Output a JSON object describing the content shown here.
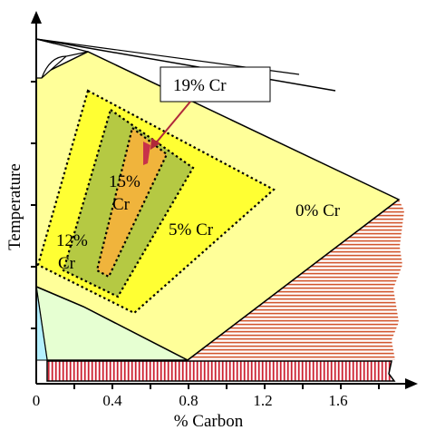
{
  "xlabel": "% Carbon",
  "ylabel": "Temperature",
  "x_ticks": [
    "0",
    "0.4",
    "0.8",
    "1.2",
    "1.6"
  ],
  "region_labels": {
    "cr0": "0% Cr",
    "cr5": "5% Cr",
    "cr12_line1": "12%",
    "cr12_line2": "Cr",
    "cr15_line1": "15%",
    "cr15_line2": "Cr"
  },
  "callout": "19% Cr",
  "colors": {
    "cr0_region": "#ffff99",
    "cr5_region": "#ffff33",
    "cr12_region": "#b5c943",
    "cr15_region": "#f0b43c",
    "cr19_marker": "#c8324a",
    "carbide_hatch": "#d2552d",
    "pearlite_hatch": "#cc2030",
    "ferrite_region": "#e6ffd2",
    "alpha_region": "#b4f0ff",
    "callout_arrow": "#b0283a"
  }
}
